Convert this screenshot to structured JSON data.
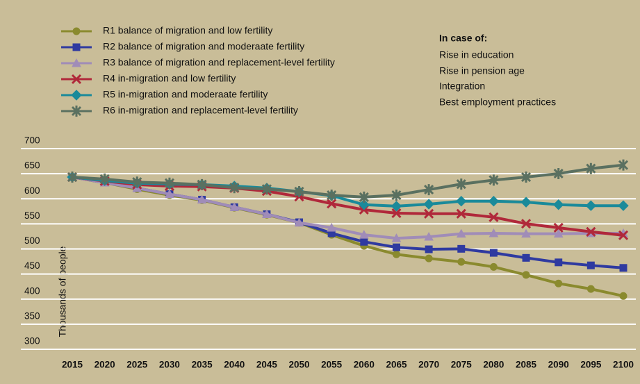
{
  "chart_data": {
    "type": "line",
    "y_label": "Thousands of people",
    "categories": [
      "2015",
      "2020",
      "2025",
      "2030",
      "2035",
      "2040",
      "2045",
      "2050",
      "2055",
      "2060",
      "2065",
      "2070",
      "2075",
      "2080",
      "2085",
      "2090",
      "2095",
      "2100"
    ],
    "series": [
      {
        "name": "R1 balance of migration and low fertility",
        "color": "#8a8a2e",
        "marker": "circle",
        "values": [
          628,
          617,
          604,
          592,
          582,
          567,
          553,
          537,
          513,
          491,
          474,
          466,
          459,
          449,
          433,
          416,
          405,
          391
        ]
      },
      {
        "name": "R2 balance of migration and moderaate fertility",
        "color": "#2f3aa0",
        "marker": "square",
        "values": [
          628,
          617,
          606,
          594,
          583,
          568,
          554,
          538,
          516,
          499,
          488,
          484,
          485,
          477,
          467,
          458,
          452,
          447
        ]
      },
      {
        "name": "R3 balance of migration and replacement-level fertility",
        "color": "#a08cb8",
        "marker": "triangle",
        "values": [
          628,
          617,
          606,
          594,
          583,
          568,
          554,
          537,
          527,
          513,
          506,
          509,
          515,
          516,
          515,
          515,
          516,
          516
        ]
      },
      {
        "name": "R4 in-migration and low fertility",
        "color": "#b0283a",
        "marker": "x",
        "values": [
          628,
          620,
          613,
          610,
          609,
          606,
          600,
          589,
          575,
          563,
          556,
          555,
          555,
          548,
          535,
          527,
          519,
          512
        ]
      },
      {
        "name": "R5 in-migration and moderaate fertility",
        "color": "#1a8a9a",
        "marker": "diamond",
        "values": [
          628,
          621,
          616,
          614,
          613,
          610,
          606,
          599,
          591,
          573,
          570,
          574,
          580,
          580,
          578,
          573,
          571,
          571
        ]
      },
      {
        "name": "R6 in-migration and replacement-level fertility",
        "color": "#5a7060",
        "marker": "star",
        "values": [
          628,
          624,
          618,
          616,
          613,
          607,
          604,
          599,
          592,
          588,
          592,
          603,
          614,
          622,
          628,
          635,
          645,
          652
        ]
      }
    ],
    "annotation": {
      "title": "In case of:",
      "items": [
        "Rise in education",
        "Rise in pension age",
        "Integration",
        "Best employment practices"
      ]
    },
    "ylim": [
      300,
      700
    ],
    "yticks": [
      300,
      350,
      400,
      450,
      500,
      550,
      600,
      650,
      700
    ],
    "grid": true
  }
}
